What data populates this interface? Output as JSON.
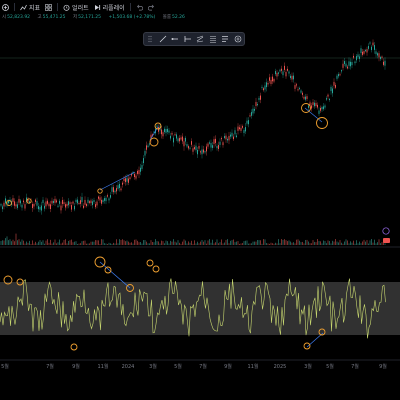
{
  "toolbar": {
    "indicators_label": "지표",
    "alerts_label": "얼러트",
    "replay_label": "리플레이"
  },
  "ohlc": {
    "values": [
      "52,823.92",
      "55,471.25",
      "52,171.25",
      "+1,503.68 (+2.78%)",
      "52.26"
    ],
    "labels": [
      "시",
      "고",
      "저",
      "",
      "볼륨"
    ]
  },
  "axis": {
    "months": [
      "5월",
      "7월",
      "9월",
      "11월",
      "2024",
      "3월",
      "5월",
      "7월",
      "9월",
      "11월",
      "2025",
      "3월",
      "5월",
      "7월",
      "9월"
    ]
  },
  "colors": {
    "up": "#26a69a",
    "down": "#ef5350",
    "marker": "#f0a030",
    "rsi_line": "#c8d870",
    "band": "#3a3a3a",
    "trend_up": "#3d7cf0"
  }
}
